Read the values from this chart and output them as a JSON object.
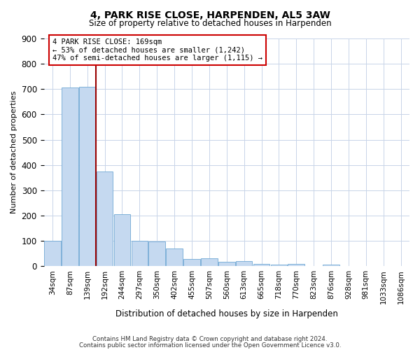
{
  "title1": "4, PARK RISE CLOSE, HARPENDEN, AL5 3AW",
  "title2": "Size of property relative to detached houses in Harpenden",
  "xlabel": "Distribution of detached houses by size in Harpenden",
  "ylabel": "Number of detached properties",
  "categories": [
    "34sqm",
    "87sqm",
    "139sqm",
    "192sqm",
    "244sqm",
    "297sqm",
    "350sqm",
    "402sqm",
    "455sqm",
    "507sqm",
    "560sqm",
    "613sqm",
    "665sqm",
    "718sqm",
    "770sqm",
    "823sqm",
    "876sqm",
    "928sqm",
    "981sqm",
    "1033sqm",
    "1086sqm"
  ],
  "values": [
    100,
    707,
    710,
    375,
    205,
    100,
    97,
    70,
    27,
    30,
    17,
    20,
    8,
    5,
    8,
    0,
    5,
    0,
    0,
    0,
    0
  ],
  "bar_color": "#c5d9f0",
  "bar_edge_color": "#6fa8d4",
  "vline_x": 2.5,
  "vline_color": "#990000",
  "annotation_line1": "4 PARK RISE CLOSE: 169sqm",
  "annotation_line2": "← 53% of detached houses are smaller (1,242)",
  "annotation_line3": "47% of semi-detached houses are larger (1,115) →",
  "annotation_box_color": "#ffffff",
  "annotation_box_edge": "#cc0000",
  "ylim": [
    0,
    900
  ],
  "yticks": [
    0,
    100,
    200,
    300,
    400,
    500,
    600,
    700,
    800,
    900
  ],
  "footer1": "Contains HM Land Registry data © Crown copyright and database right 2024.",
  "footer2": "Contains public sector information licensed under the Open Government Licence v3.0.",
  "background_color": "#ffffff",
  "grid_color": "#c8d4e8"
}
